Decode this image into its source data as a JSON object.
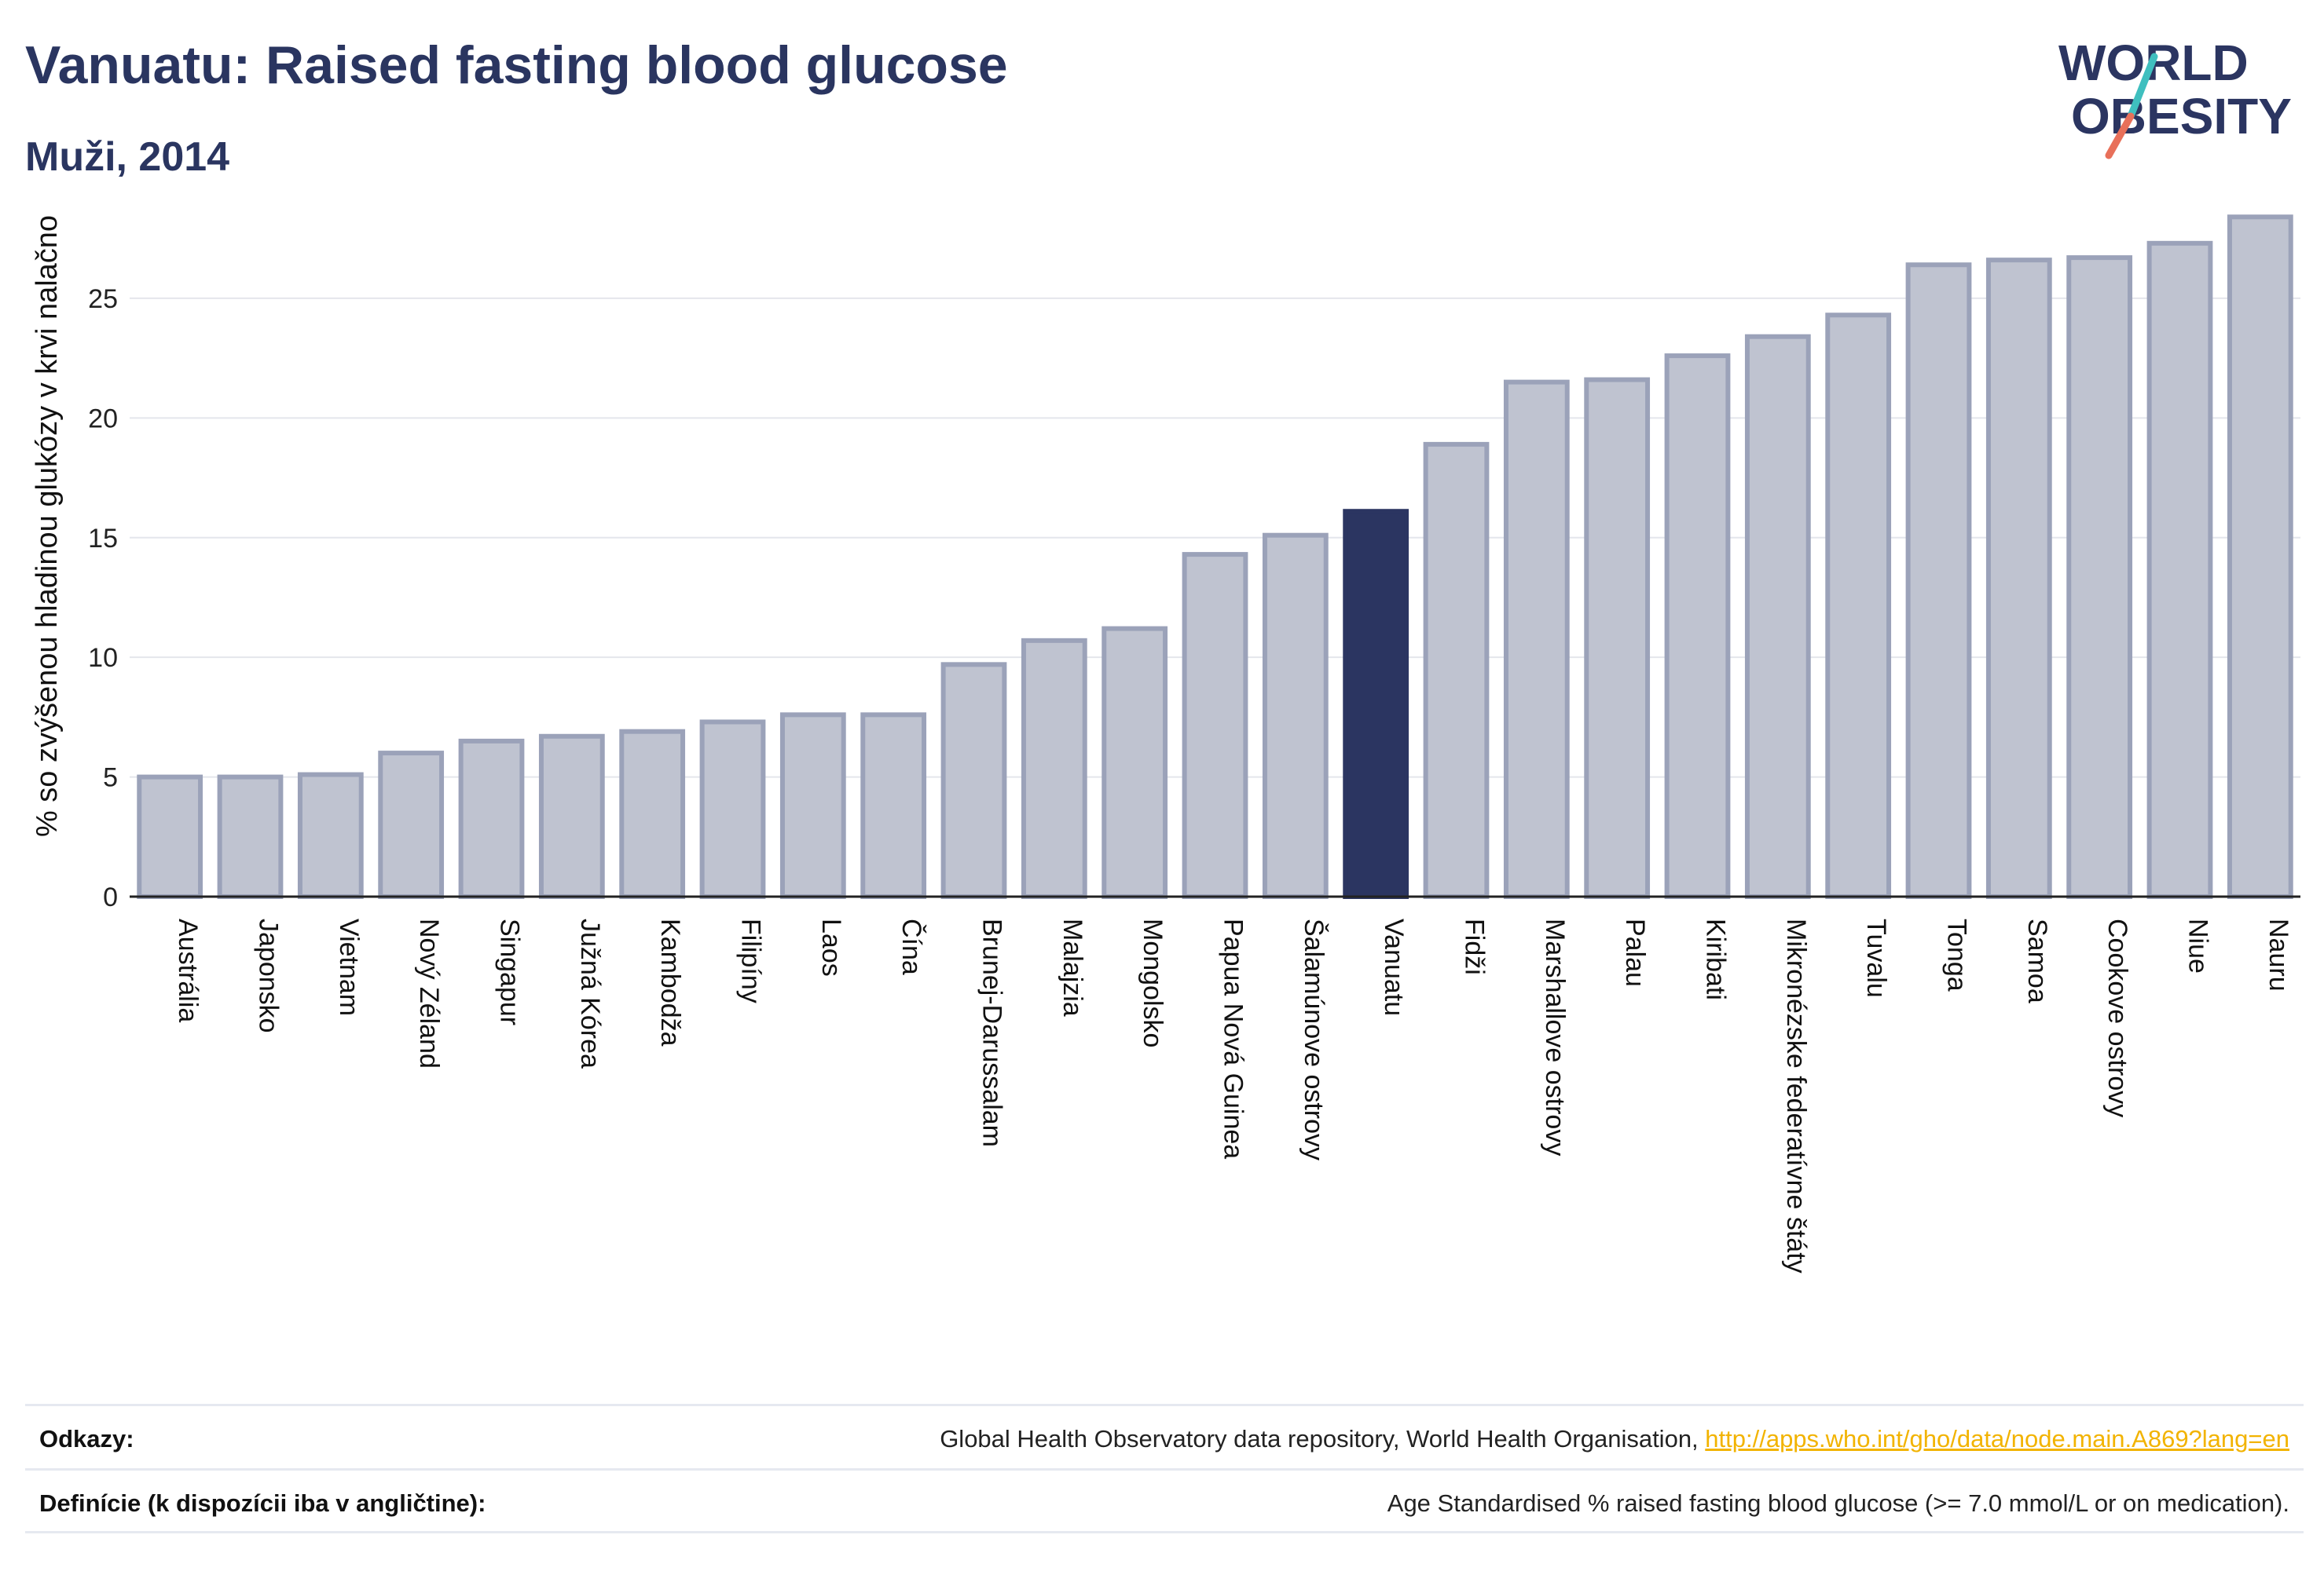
{
  "header": {
    "title": "Vanuatu: Raised fasting blood glucose",
    "subtitle": "Muži, 2014"
  },
  "logo": {
    "line1": "WORLD",
    "line2": "OBESITY"
  },
  "colors": {
    "highlight": "#2b3561",
    "bar_fill": "#bfc3d0",
    "bar_stroke": "#9ba2b9",
    "grid": "#e4e6ec",
    "logo_text": "#2b3561",
    "logo_slash_top": "#3fbfbf",
    "logo_slash_bottom": "#e8705a",
    "link": "#f2b300"
  },
  "chart_data": {
    "type": "bar",
    "categories": [
      "Austrália",
      "Japonsko",
      "Vietnam",
      "Nový Zéland",
      "Singapur",
      "Južná Kórea",
      "Kambodža",
      "Filipíny",
      "Laos",
      "Čína",
      "Brunej-Darussalam",
      "Malajzia",
      "Mongolsko",
      "Papua Nová Guinea",
      "Šalamúnove ostrovy",
      "Vanuatu",
      "Fidži",
      "Marshallove ostrovy",
      "Palau",
      "Kiribati",
      "Mikronézske federatívne štáty",
      "Tuvalu",
      "Tonga",
      "Samoa",
      "Cookove ostrovy",
      "Niue",
      "Nauru"
    ],
    "values": [
      5.0,
      5.0,
      5.1,
      6.0,
      6.5,
      6.7,
      6.9,
      7.3,
      7.6,
      7.6,
      9.7,
      10.7,
      11.2,
      14.3,
      15.1,
      16.1,
      18.9,
      21.5,
      21.6,
      22.6,
      23.4,
      24.3,
      26.4,
      26.6,
      26.7,
      27.3,
      28.4
    ],
    "highlight": "Vanuatu",
    "ylabel": "% so zvýšenou hladinou glukózy v krvi nalačno",
    "xlabel": "",
    "yticks": [
      0,
      5,
      10,
      15,
      20,
      25
    ],
    "ylim": [
      0,
      29
    ],
    "grid": true
  },
  "footer": {
    "sources_label": "Odkazy:",
    "sources_text": "Global Health Observatory data repository, World Health Organisation, ",
    "sources_link": "http://apps.who.int/gho/data/node.main.A869?lang=en",
    "definition_label": "Definície (k dispozícii iba v angličtine):",
    "definition_text": "Age Standardised % raised fasting blood glucose (>= 7.0 mmol/L or on medication)."
  }
}
